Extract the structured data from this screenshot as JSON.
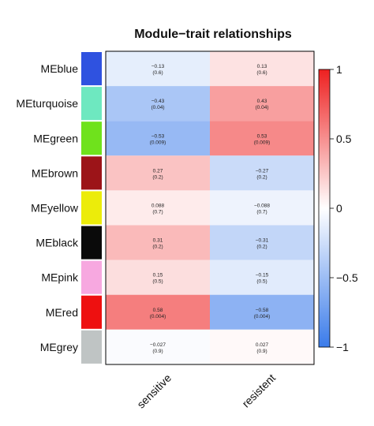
{
  "chart_data": {
    "type": "heatmap",
    "title": "Module−trait relationships",
    "columns": [
      "sensitive",
      "resistent"
    ],
    "rows": [
      "MEblue",
      "MEturquoise",
      "MEgreen",
      "MEbrown",
      "MEyellow",
      "MEblack",
      "MEpink",
      "MEred",
      "MEgrey"
    ],
    "row_colors": [
      "#2f52e0",
      "#6ee8c0",
      "#6fe21c",
      "#9c1418",
      "#ecec0a",
      "#0a0a0a",
      "#f7a8e0",
      "#ee1010",
      "#bfc4c4"
    ],
    "values": [
      [
        -0.13,
        0.13
      ],
      [
        -0.43,
        0.43
      ],
      [
        -0.53,
        0.53
      ],
      [
        0.27,
        -0.27
      ],
      [
        0.088,
        -0.088
      ],
      [
        0.31,
        -0.31
      ],
      [
        0.15,
        -0.15
      ],
      [
        0.58,
        -0.58
      ],
      [
        -0.027,
        0.027
      ]
    ],
    "value_labels": [
      [
        "−0.13",
        "0.13"
      ],
      [
        "−0.43",
        "0.43"
      ],
      [
        "−0.53",
        "0.53"
      ],
      [
        "0.27",
        "−0.27"
      ],
      [
        "0.088",
        "−0.088"
      ],
      [
        "0.31",
        "−0.31"
      ],
      [
        "0.15",
        "−0.15"
      ],
      [
        "0.58",
        "−0.58"
      ],
      [
        "−0.027",
        "0.027"
      ]
    ],
    "p_labels": [
      [
        "(0.6)",
        "(0.6)"
      ],
      [
        "(0.04)",
        "(0.04)"
      ],
      [
        "(0.009)",
        "(0.009)"
      ],
      [
        "(0.2)",
        "(0.2)"
      ],
      [
        "(0.7)",
        "(0.7)"
      ],
      [
        "(0.2)",
        "(0.2)"
      ],
      [
        "(0.5)",
        "(0.5)"
      ],
      [
        "(0.004)",
        "(0.004)"
      ],
      [
        "(0.9)",
        "(0.9)"
      ]
    ],
    "colorbar": {
      "range": [
        -1,
        1
      ],
      "ticks": [
        1,
        0.5,
        0,
        -0.5,
        -1
      ],
      "tick_labels": [
        "1",
        "0.5",
        "0",
        "−0.5",
        "−1"
      ],
      "low_color": "#3a7bea",
      "mid_color": "#ffffff",
      "high_color": "#ee2020"
    }
  }
}
